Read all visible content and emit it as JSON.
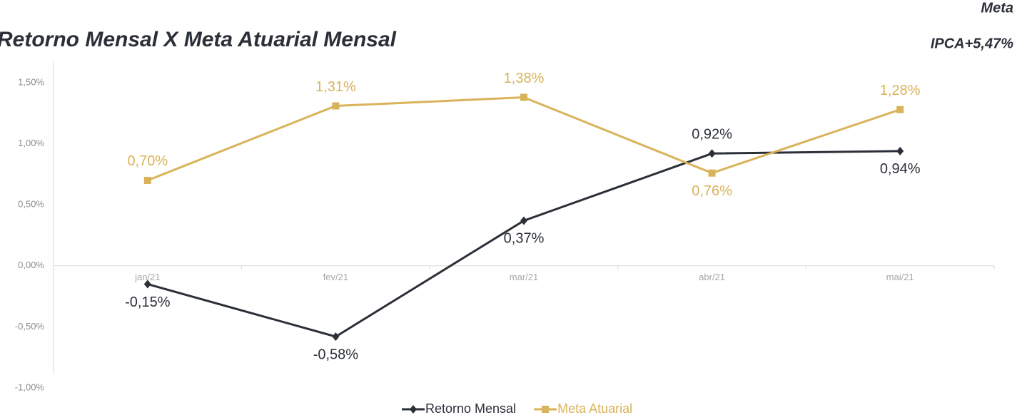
{
  "chart_data": {
    "type": "line",
    "title": "Retorno Mensal X Meta Atuarial Mensal",
    "corner_note": [
      "Meta",
      "IPCA+5,47%"
    ],
    "categories": [
      "jan/21",
      "fev/21",
      "mar/21",
      "abr/21",
      "mai/21"
    ],
    "series": [
      {
        "name": "Retorno Mensal",
        "color": "#2b2f38",
        "marker": "diamond",
        "values": [
          -0.15,
          -0.58,
          0.37,
          0.92,
          0.94
        ],
        "value_labels": [
          "-0,15%",
          "-0,58%",
          "0,37%",
          "0,92%",
          "0,94%"
        ]
      },
      {
        "name": "Meta Atuarial",
        "color": "#d9b35a",
        "marker": "square",
        "values": [
          0.7,
          1.31,
          1.38,
          0.76,
          1.28
        ],
        "value_labels": [
          "0,70%",
          "1,31%",
          "1,38%",
          "0,76%",
          "1,28%"
        ]
      }
    ],
    "ylim": [
      -1,
      1.5
    ],
    "yticks": [
      {
        "value": -1,
        "label": "-1,00%"
      },
      {
        "value": -0.5,
        "label": "-0,50%"
      },
      {
        "value": 0,
        "label": "0,00%"
      },
      {
        "value": 0.5,
        "label": "0,50%"
      },
      {
        "value": 1,
        "label": "1,00%"
      },
      {
        "value": 1.5,
        "label": "1,50%"
      }
    ],
    "legend": "bottom"
  }
}
